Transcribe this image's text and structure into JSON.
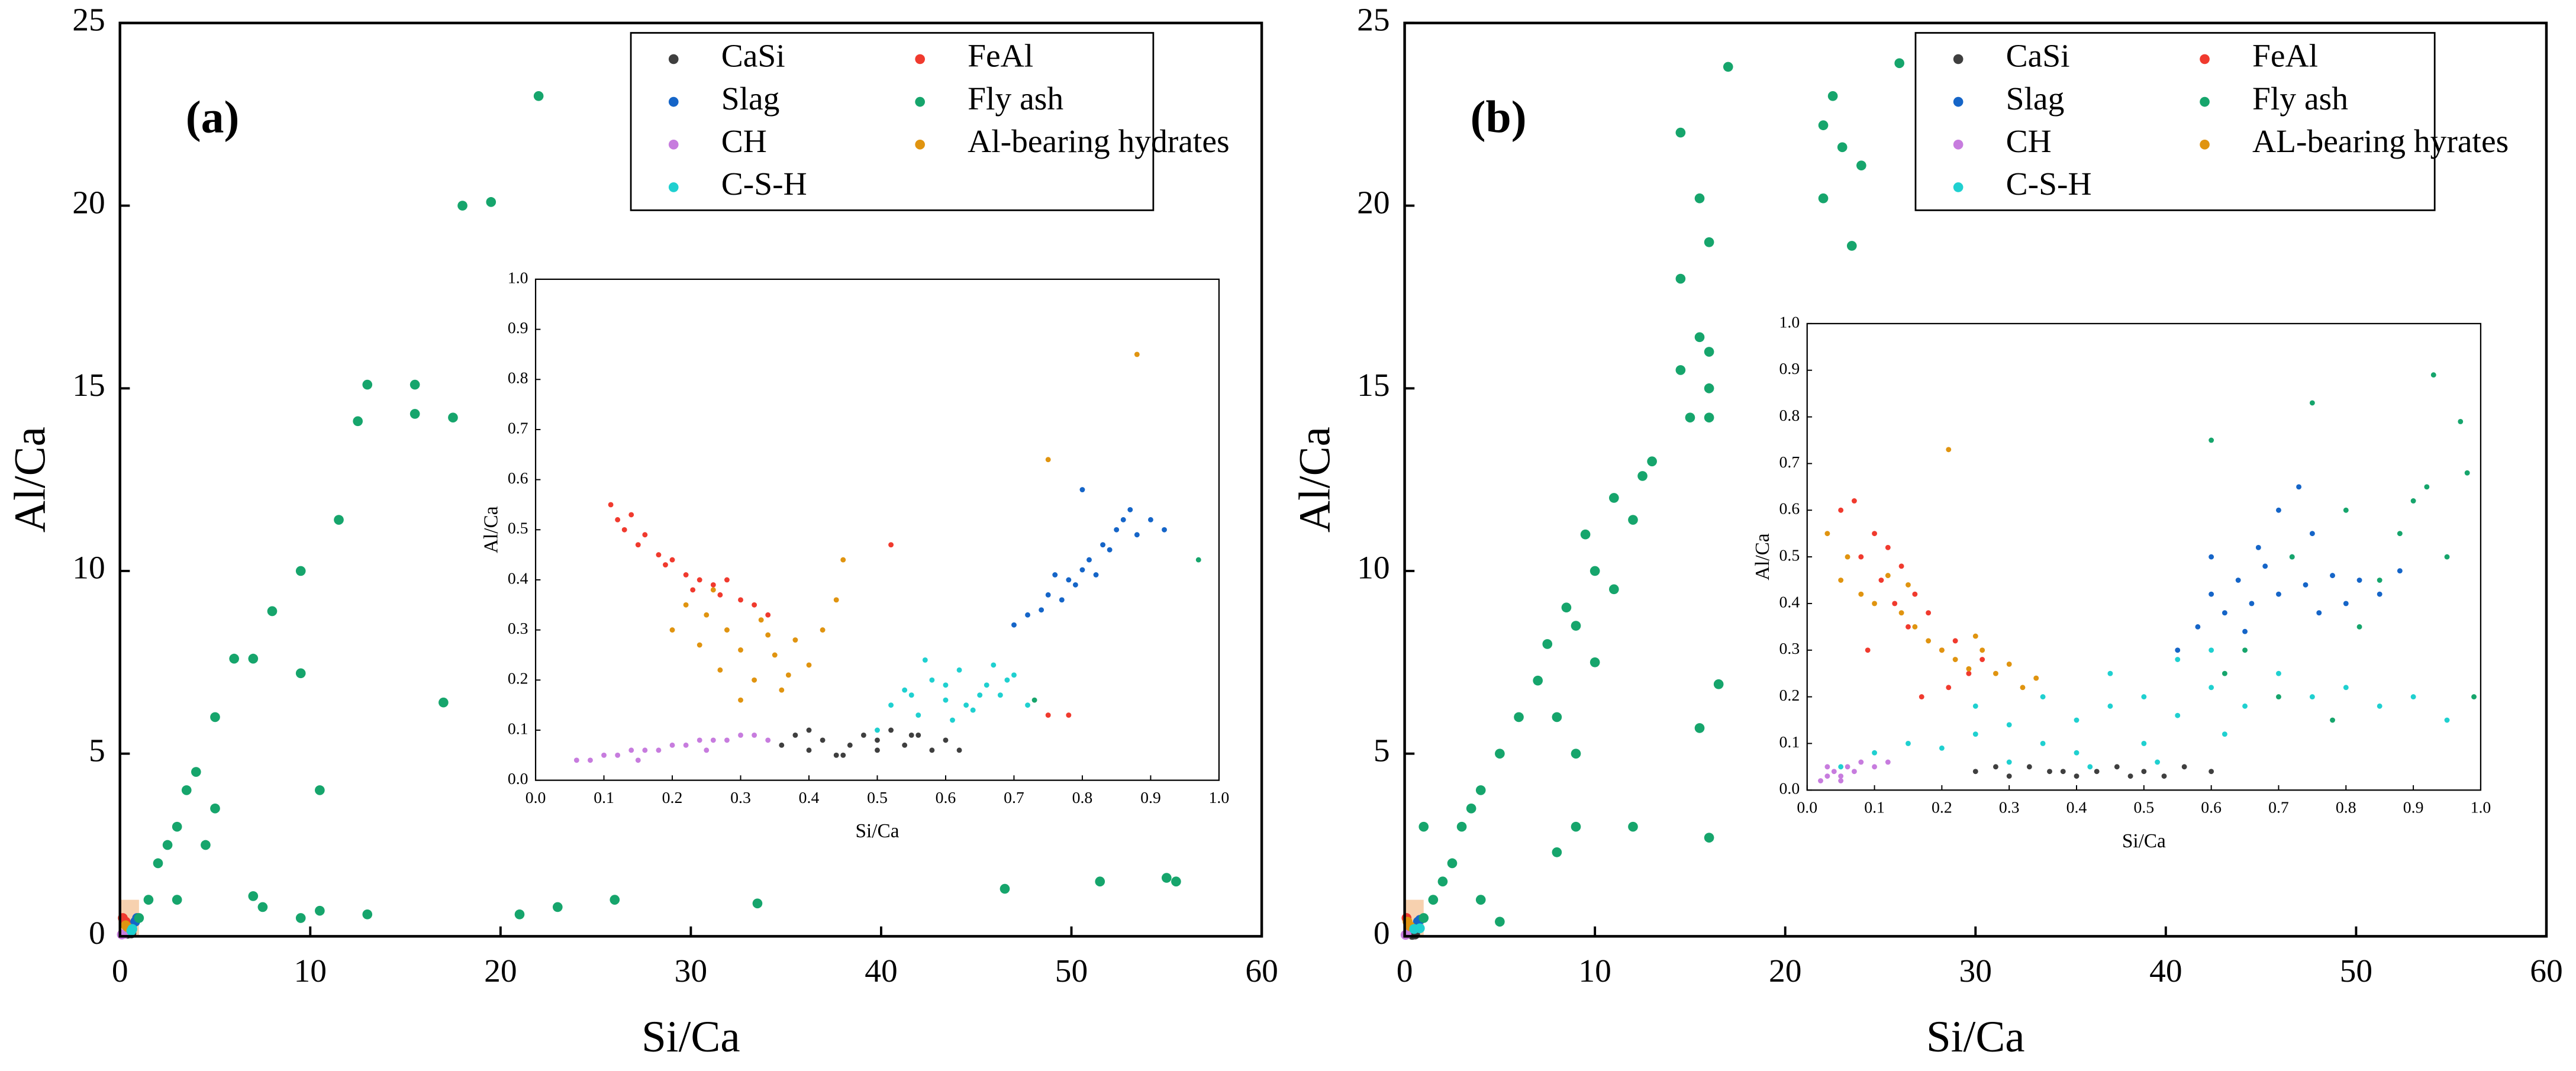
{
  "chart_data": [
    {
      "type": "scatter",
      "label": "(a)",
      "x_label": "Si/Ca",
      "y_label": "Al/Ca",
      "legend": "upper right",
      "xlim": [
        0,
        60
      ],
      "ylim": [
        0,
        25
      ],
      "xticks": [
        0,
        10,
        20,
        30,
        40,
        50,
        60
      ],
      "yticks": [
        0,
        5,
        10,
        15,
        20,
        25
      ],
      "series": [
        {
          "name": "CaSi",
          "color": "#3f3f3f",
          "x": [
            0.4,
            0.6
          ],
          "values": [
            0.07,
            0.08
          ]
        },
        {
          "name": "FeAl",
          "color": "#f03a2e",
          "x": [
            0.15,
            0.3
          ],
          "values": [
            0.5,
            0.4
          ]
        },
        {
          "name": "Slag",
          "color": "#1565c8",
          "x": [
            0.8,
            0.9
          ],
          "values": [
            0.4,
            0.5
          ]
        },
        {
          "name": "Fly ash",
          "color": "#16a56c",
          "x": [
            22,
            18,
            19.5,
            13,
            15.5,
            12.5,
            15.5,
            17.5,
            11.5,
            9.5,
            8,
            6,
            7,
            9.5,
            17,
            10.5,
            5,
            4,
            3.5,
            3,
            2.5,
            2,
            1.5,
            1,
            3,
            7,
            7.5,
            9.5,
            10.5,
            13,
            21,
            23,
            26,
            33.5,
            46.5,
            51.5,
            55,
            55.5,
            4.5,
            5
          ],
          "values": [
            23,
            20,
            20.1,
            15.1,
            15.1,
            14.1,
            14.3,
            14.2,
            11.4,
            10,
            8.9,
            7.6,
            7.6,
            7.2,
            6.4,
            4,
            6,
            4.5,
            4,
            3,
            2.5,
            2,
            1,
            0.5,
            1,
            1.1,
            0.8,
            0.5,
            0.7,
            0.6,
            0.6,
            0.8,
            1,
            0.9,
            1.3,
            1.5,
            1.6,
            1.5,
            2.5,
            3.5
          ]
        },
        {
          "name": "CH",
          "color": "#c77cde",
          "x": [
            0.1,
            0.25
          ],
          "values": [
            0.05,
            0.07
          ]
        },
        {
          "name": "Al-bearing hydrates",
          "color": "#e09410",
          "x": [
            0.3,
            0.4
          ],
          "values": [
            0.3,
            0.25
          ]
        },
        {
          "name": "C-S-H",
          "color": "#1fd0d0",
          "x": [
            0.6,
            0.65
          ],
          "values": [
            0.15,
            0.2
          ]
        }
      ]
    },
    {
      "type": "scatter",
      "x_label": "Si/Ca",
      "y_label": "Al/Ca",
      "xlim": [
        0,
        1
      ],
      "ylim": [
        0,
        1
      ],
      "xticks": [
        {
          "value": 0,
          "label": "0.0"
        },
        0.1,
        0.2,
        0.3,
        0.4,
        0.5,
        0.6,
        0.7,
        0.8,
        0.9,
        {
          "value": 1,
          "label": "1.0"
        }
      ],
      "yticks": [
        {
          "value": 0,
          "label": "0.0"
        },
        0.1,
        0.2,
        0.3,
        0.4,
        0.5,
        0.6,
        0.7,
        0.8,
        0.9,
        {
          "value": 1,
          "label": "1.0"
        }
      ],
      "series": [
        {
          "color": "#3f3f3f",
          "x": [
            0.36,
            0.38,
            0.4,
            0.42,
            0.44,
            0.46,
            0.48,
            0.5,
            0.52,
            0.54,
            0.56,
            0.58,
            0.6,
            0.62,
            0.4,
            0.45,
            0.5,
            0.55
          ],
          "values": [
            0.07,
            0.09,
            0.06,
            0.08,
            0.05,
            0.07,
            0.09,
            0.08,
            0.1,
            0.07,
            0.09,
            0.06,
            0.08,
            0.06,
            0.1,
            0.05,
            0.06,
            0.09
          ]
        },
        {
          "color": "#f03a2e",
          "x": [
            0.11,
            0.12,
            0.13,
            0.14,
            0.15,
            0.16,
            0.18,
            0.2,
            0.22,
            0.24,
            0.26,
            0.28,
            0.3,
            0.32,
            0.34,
            0.19,
            0.23,
            0.27,
            0.52,
            0.78,
            0.75
          ],
          "values": [
            0.55,
            0.52,
            0.5,
            0.53,
            0.47,
            0.49,
            0.45,
            0.44,
            0.41,
            0.4,
            0.39,
            0.4,
            0.36,
            0.35,
            0.33,
            0.43,
            0.38,
            0.37,
            0.47,
            0.13,
            0.13
          ]
        },
        {
          "color": "#1565c8",
          "x": [
            0.7,
            0.72,
            0.74,
            0.75,
            0.77,
            0.78,
            0.79,
            0.8,
            0.81,
            0.82,
            0.83,
            0.84,
            0.85,
            0.86,
            0.88,
            0.9,
            0.92,
            0.8,
            0.76,
            0.87
          ],
          "values": [
            0.31,
            0.33,
            0.34,
            0.37,
            0.36,
            0.4,
            0.39,
            0.42,
            0.44,
            0.41,
            0.47,
            0.46,
            0.5,
            0.52,
            0.49,
            0.52,
            0.5,
            0.58,
            0.41,
            0.54
          ]
        },
        {
          "color": "#16a56c",
          "x": [
            0.97,
            0.73
          ],
          "values": [
            0.44,
            0.16
          ]
        },
        {
          "color": "#c77cde",
          "x": [
            0.06,
            0.08,
            0.1,
            0.12,
            0.14,
            0.16,
            0.18,
            0.2,
            0.22,
            0.24,
            0.26,
            0.28,
            0.3,
            0.32,
            0.34,
            0.15,
            0.25
          ],
          "values": [
            0.04,
            0.04,
            0.05,
            0.05,
            0.06,
            0.06,
            0.06,
            0.07,
            0.07,
            0.08,
            0.08,
            0.08,
            0.09,
            0.09,
            0.08,
            0.04,
            0.06
          ]
        },
        {
          "color": "#e09410",
          "x": [
            0.2,
            0.22,
            0.24,
            0.25,
            0.27,
            0.28,
            0.3,
            0.32,
            0.33,
            0.35,
            0.36,
            0.38,
            0.4,
            0.42,
            0.44,
            0.3,
            0.34,
            0.37,
            0.26,
            0.88,
            0.75,
            0.45
          ],
          "values": [
            0.3,
            0.35,
            0.27,
            0.33,
            0.22,
            0.3,
            0.26,
            0.2,
            0.32,
            0.25,
            0.18,
            0.28,
            0.23,
            0.3,
            0.36,
            0.16,
            0.29,
            0.21,
            0.38,
            0.85,
            0.64,
            0.44
          ]
        },
        {
          "color": "#1fd0d0",
          "x": [
            0.52,
            0.54,
            0.56,
            0.58,
            0.6,
            0.62,
            0.64,
            0.66,
            0.68,
            0.7,
            0.72,
            0.57,
            0.61,
            0.65,
            0.69,
            0.55,
            0.63,
            0.67,
            0.6,
            0.5
          ],
          "values": [
            0.15,
            0.18,
            0.13,
            0.2,
            0.16,
            0.22,
            0.14,
            0.19,
            0.17,
            0.21,
            0.15,
            0.24,
            0.12,
            0.17,
            0.2,
            0.17,
            0.15,
            0.23,
            0.19,
            0.1
          ]
        }
      ]
    },
    {
      "type": "scatter",
      "label": "(b)",
      "x_label": "Si/Ca",
      "y_label": "Al/Ca",
      "legend": "upper right",
      "xlim": [
        0,
        60
      ],
      "ylim": [
        0,
        25
      ],
      "xticks": [
        0,
        10,
        20,
        30,
        40,
        50,
        60
      ],
      "yticks": [
        0,
        5,
        10,
        15,
        20,
        25
      ],
      "series": [
        {
          "name": "CaSi",
          "color": "#3f3f3f",
          "x": [
            0.4,
            0.55
          ],
          "values": [
            0.04,
            0.05
          ]
        },
        {
          "name": "FeAl",
          "color": "#f03a2e",
          "x": [
            0.1,
            0.2
          ],
          "values": [
            0.5,
            0.3
          ]
        },
        {
          "name": "Slag",
          "color": "#1565c8",
          "x": [
            0.7,
            0.8
          ],
          "values": [
            0.4,
            0.45
          ]
        },
        {
          "name": "Fly ash",
          "color": "#16a56c",
          "x": [
            17,
            26,
            14.5,
            22,
            22.5,
            23,
            24,
            22,
            15.5,
            16,
            23.5,
            14.5,
            15.5,
            16,
            14.5,
            16,
            16,
            15,
            13,
            12.5,
            11,
            12,
            9.5,
            10,
            11,
            8.5,
            9,
            7.5,
            10,
            7,
            6,
            8,
            5,
            9,
            4,
            3.5,
            3,
            2.5,
            2,
            1.5,
            1,
            16.5,
            16,
            15.5,
            12,
            9,
            8,
            5,
            4,
            1
          ],
          "values": [
            23.8,
            23.9,
            22,
            22.2,
            23,
            21.6,
            21.1,
            20.2,
            20.2,
            19,
            18.9,
            18,
            16.4,
            16,
            15.5,
            15,
            14.2,
            14.2,
            13,
            12.6,
            12,
            11.4,
            11,
            10,
            9.5,
            9,
            8.5,
            8,
            7.5,
            7,
            6,
            6,
            5,
            5,
            4,
            3.5,
            3,
            2,
            1.5,
            1,
            0.5,
            6.9,
            2.7,
            5.7,
            3,
            3,
            2.3,
            0.4,
            1,
            3
          ]
        },
        {
          "name": "CH",
          "color": "#c77cde",
          "x": [
            0.05,
            0.1
          ],
          "values": [
            0.04,
            0.05
          ]
        },
        {
          "name": "AL-bearing hyrates",
          "color": "#e09410",
          "x": [
            0.15,
            0.3
          ],
          "values": [
            0.4,
            0.27
          ]
        },
        {
          "name": "C-S-H",
          "color": "#1fd0d0",
          "x": [
            0.5,
            0.8
          ],
          "values": [
            0.2,
            0.22
          ]
        }
      ]
    },
    {
      "type": "scatter",
      "x_label": "Si/Ca",
      "y_label": "Al/Ca",
      "xlim": [
        0,
        1
      ],
      "ylim": [
        0,
        1
      ],
      "xticks": [
        {
          "value": 0,
          "label": "0.0"
        },
        0.1,
        0.2,
        0.3,
        0.4,
        0.5,
        0.6,
        0.7,
        0.8,
        0.9,
        {
          "value": 1,
          "label": "1.0"
        }
      ],
      "yticks": [
        {
          "value": 0,
          "label": "0.0"
        },
        0.1,
        0.2,
        0.3,
        0.4,
        0.5,
        0.6,
        0.7,
        0.8,
        0.9,
        {
          "value": 1,
          "label": "1.0"
        }
      ],
      "series": [
        {
          "color": "#3f3f3f",
          "x": [
            0.25,
            0.3,
            0.33,
            0.36,
            0.4,
            0.43,
            0.46,
            0.5,
            0.53,
            0.56,
            0.6,
            0.28,
            0.38,
            0.48
          ],
          "values": [
            0.04,
            0.03,
            0.05,
            0.04,
            0.03,
            0.04,
            0.05,
            0.04,
            0.03,
            0.05,
            0.04,
            0.05,
            0.04,
            0.03
          ]
        },
        {
          "color": "#f03a2e",
          "x": [
            0.05,
            0.07,
            0.08,
            0.1,
            0.11,
            0.12,
            0.13,
            0.14,
            0.15,
            0.16,
            0.18,
            0.2,
            0.22,
            0.24,
            0.26,
            0.09,
            0.17,
            0.21
          ],
          "values": [
            0.6,
            0.62,
            0.5,
            0.55,
            0.45,
            0.52,
            0.4,
            0.48,
            0.35,
            0.42,
            0.38,
            0.3,
            0.32,
            0.25,
            0.28,
            0.3,
            0.2,
            0.22
          ]
        },
        {
          "color": "#1565c8",
          "x": [
            0.55,
            0.58,
            0.6,
            0.62,
            0.64,
            0.66,
            0.68,
            0.7,
            0.72,
            0.74,
            0.76,
            0.78,
            0.8,
            0.82,
            0.85,
            0.6,
            0.7,
            0.75,
            0.65,
            0.88,
            0.73,
            0.67
          ],
          "values": [
            0.3,
            0.35,
            0.42,
            0.38,
            0.45,
            0.4,
            0.48,
            0.42,
            0.5,
            0.44,
            0.38,
            0.46,
            0.4,
            0.45,
            0.42,
            0.5,
            0.6,
            0.55,
            0.34,
            0.47,
            0.65,
            0.52
          ]
        },
        {
          "color": "#16a56c",
          "x": [
            0.6,
            0.65,
            0.7,
            0.75,
            0.8,
            0.85,
            0.9,
            0.93,
            0.95,
            0.97,
            0.99,
            0.72,
            0.82,
            0.88,
            0.92,
            0.98,
            0.62,
            0.78
          ],
          "values": [
            0.75,
            0.3,
            0.2,
            0.83,
            0.6,
            0.45,
            0.62,
            0.89,
            0.5,
            0.79,
            0.2,
            0.5,
            0.35,
            0.55,
            0.65,
            0.68,
            0.25,
            0.15
          ]
        },
        {
          "color": "#c77cde",
          "x": [
            0.02,
            0.03,
            0.04,
            0.05,
            0.06,
            0.07,
            0.08,
            0.1,
            0.12,
            0.05,
            0.03
          ],
          "values": [
            0.02,
            0.03,
            0.04,
            0.03,
            0.05,
            0.04,
            0.06,
            0.05,
            0.06,
            0.02,
            0.05
          ]
        },
        {
          "color": "#e09410",
          "x": [
            0.03,
            0.05,
            0.06,
            0.08,
            0.1,
            0.12,
            0.14,
            0.16,
            0.18,
            0.2,
            0.22,
            0.24,
            0.26,
            0.28,
            0.3,
            0.32,
            0.34,
            0.21,
            0.15,
            0.25
          ],
          "values": [
            0.55,
            0.45,
            0.5,
            0.42,
            0.4,
            0.46,
            0.38,
            0.35,
            0.32,
            0.3,
            0.28,
            0.26,
            0.3,
            0.25,
            0.27,
            0.22,
            0.24,
            0.73,
            0.44,
            0.33
          ]
        },
        {
          "color": "#1fd0d0",
          "x": [
            0.05,
            0.1,
            0.15,
            0.2,
            0.25,
            0.3,
            0.35,
            0.4,
            0.45,
            0.5,
            0.55,
            0.6,
            0.65,
            0.7,
            0.75,
            0.8,
            0.85,
            0.9,
            0.95,
            0.3,
            0.4,
            0.5,
            0.6,
            0.45,
            0.55,
            0.35,
            0.62,
            0.42,
            0.52,
            0.25
          ],
          "values": [
            0.05,
            0.08,
            0.1,
            0.09,
            0.12,
            0.14,
            0.1,
            0.15,
            0.18,
            0.2,
            0.16,
            0.22,
            0.18,
            0.25,
            0.2,
            0.22,
            0.18,
            0.2,
            0.15,
            0.06,
            0.08,
            0.1,
            0.3,
            0.25,
            0.28,
            0.2,
            0.12,
            0.05,
            0.06,
            0.18
          ]
        }
      ]
    }
  ]
}
